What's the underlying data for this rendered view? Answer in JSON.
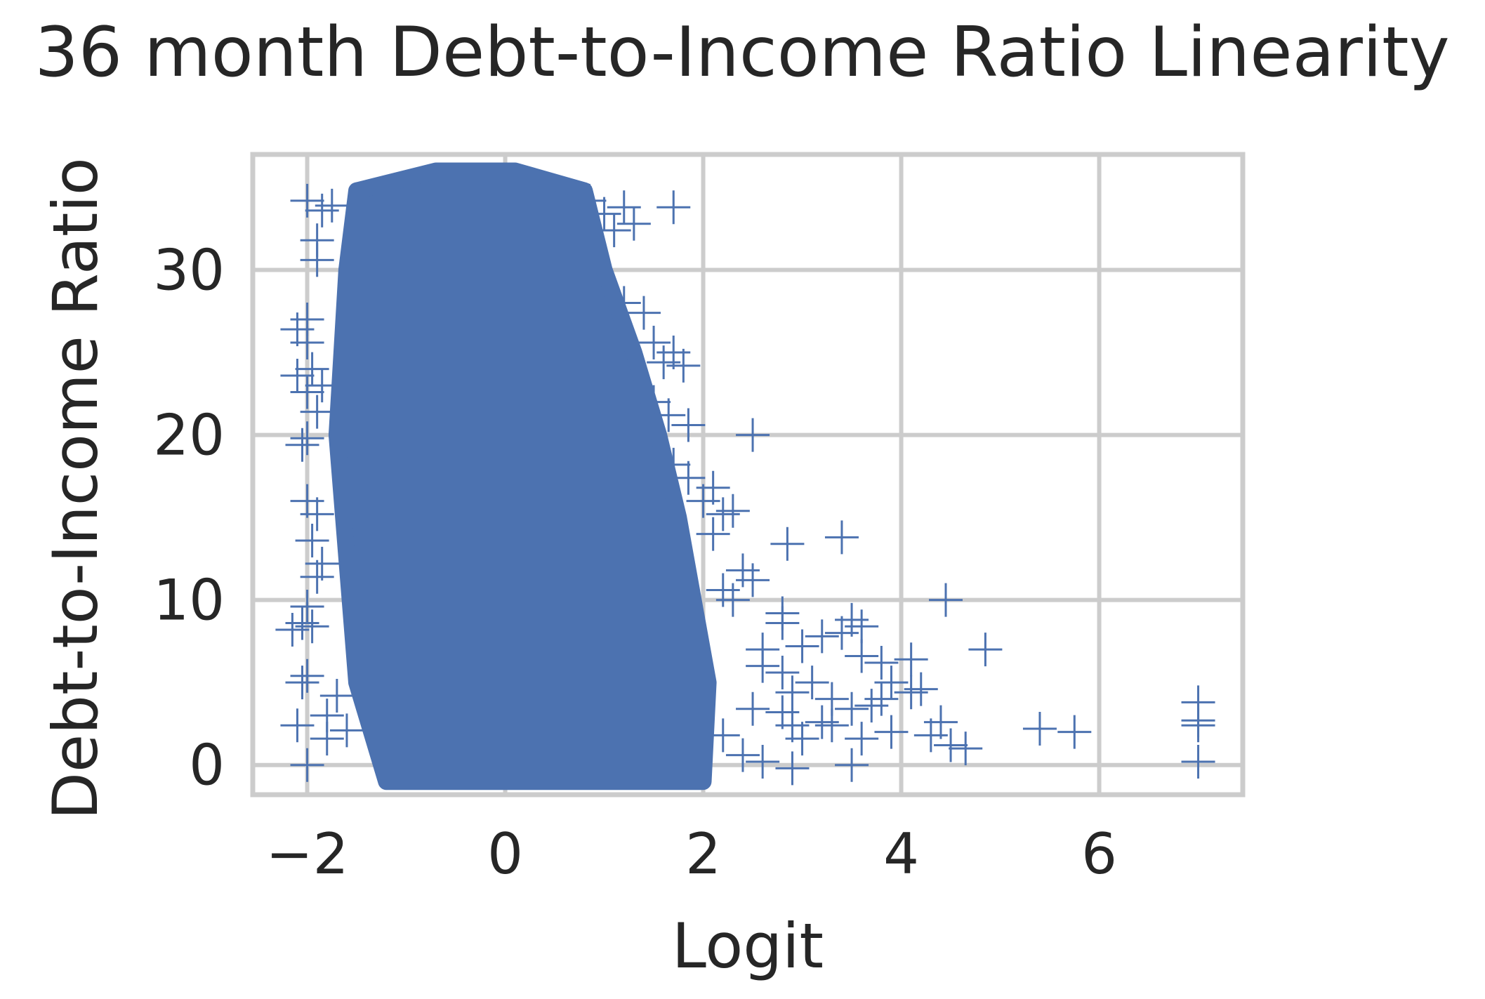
{
  "chart_data": {
    "type": "scatter",
    "title": "36 month Debt-to-Income Ratio Linearity",
    "xlabel": "Logit",
    "ylabel": "Debt-to-Income Ratio",
    "xlim": [
      -2.55,
      7.45
    ],
    "ylim": [
      -1.8,
      37.0
    ],
    "xticks": [
      -2,
      0,
      2,
      4,
      6
    ],
    "xtick_labels": [
      "−2",
      "0",
      "2",
      "4",
      "6"
    ],
    "yticks": [
      0,
      10,
      20,
      30
    ],
    "ytick_labels": [
      "0",
      "10",
      "20",
      "30"
    ],
    "grid": true,
    "marker": "+",
    "color": "#4c72b0",
    "dense_cloud": [
      [
        -1.5,
        34.8
      ],
      [
        -0.7,
        36.0
      ],
      [
        0.1,
        36.0
      ],
      [
        0.8,
        34.8
      ],
      [
        1.0,
        30.0
      ],
      [
        1.3,
        25.0
      ],
      [
        1.55,
        20.0
      ],
      [
        1.75,
        15.0
      ],
      [
        1.9,
        10.0
      ],
      [
        2.05,
        5.0
      ],
      [
        2.0,
        -1.0
      ],
      [
        -1.2,
        -1.0
      ],
      [
        -1.5,
        5.0
      ],
      [
        -1.7,
        20.0
      ],
      [
        -1.6,
        30.0
      ]
    ],
    "points": [
      [
        -2.0,
        34.2
      ],
      [
        -1.85,
        33.6
      ],
      [
        -1.75,
        33.9
      ],
      [
        -1.9,
        31.8
      ],
      [
        -1.9,
        30.6
      ],
      [
        -2.0,
        27.0
      ],
      [
        -2.1,
        26.4
      ],
      [
        -2.0,
        25.6
      ],
      [
        -1.95,
        24.0
      ],
      [
        -2.1,
        23.6
      ],
      [
        -2.0,
        22.6
      ],
      [
        -1.85,
        23.0
      ],
      [
        -1.9,
        21.4
      ],
      [
        -2.0,
        19.8
      ],
      [
        -2.05,
        19.4
      ],
      [
        -2.0,
        16.0
      ],
      [
        -1.9,
        15.2
      ],
      [
        -1.95,
        13.6
      ],
      [
        -1.85,
        12.2
      ],
      [
        -1.9,
        11.4
      ],
      [
        -2.0,
        9.6
      ],
      [
        -2.05,
        8.6
      ],
      [
        -2.15,
        8.2
      ],
      [
        -1.95,
        8.4
      ],
      [
        -2.0,
        5.4
      ],
      [
        -2.05,
        5.0
      ],
      [
        -2.1,
        2.4
      ],
      [
        -1.8,
        1.6
      ],
      [
        -1.6,
        2.1
      ],
      [
        -2.0,
        0.0
      ],
      [
        -1.7,
        4.2
      ],
      [
        -1.8,
        3.0
      ],
      [
        0.85,
        34.2
      ],
      [
        1.0,
        33.4
      ],
      [
        1.2,
        33.8
      ],
      [
        1.3,
        32.8
      ],
      [
        1.1,
        32.4
      ],
      [
        1.7,
        33.8
      ],
      [
        1.2,
        28.0
      ],
      [
        1.4,
        27.4
      ],
      [
        1.5,
        25.6
      ],
      [
        1.7,
        25.0
      ],
      [
        1.8,
        24.2
      ],
      [
        1.6,
        24.4
      ],
      [
        1.5,
        22.0
      ],
      [
        1.65,
        21.2
      ],
      [
        1.85,
        20.6
      ],
      [
        2.5,
        20.0
      ],
      [
        1.7,
        18.2
      ],
      [
        1.85,
        17.4
      ],
      [
        2.0,
        16.0
      ],
      [
        2.1,
        16.8
      ],
      [
        2.2,
        15.2
      ],
      [
        2.3,
        15.4
      ],
      [
        2.1,
        14.0
      ],
      [
        2.85,
        13.4
      ],
      [
        3.4,
        13.8
      ],
      [
        2.4,
        11.8
      ],
      [
        2.5,
        11.2
      ],
      [
        2.2,
        10.6
      ],
      [
        2.3,
        10.0
      ],
      [
        4.45,
        10.0
      ],
      [
        2.8,
        9.2
      ],
      [
        2.8,
        8.6
      ],
      [
        3.5,
        8.8
      ],
      [
        3.6,
        8.4
      ],
      [
        3.4,
        8.0
      ],
      [
        3.2,
        7.8
      ],
      [
        4.85,
        7.0
      ],
      [
        2.6,
        7.0
      ],
      [
        3.0,
        7.2
      ],
      [
        3.6,
        6.6
      ],
      [
        3.8,
        6.2
      ],
      [
        4.1,
        6.4
      ],
      [
        2.6,
        6.0
      ],
      [
        2.8,
        5.6
      ],
      [
        3.1,
        5.0
      ],
      [
        3.9,
        5.0
      ],
      [
        4.2,
        4.6
      ],
      [
        4.1,
        4.4
      ],
      [
        3.8,
        4.0
      ],
      [
        2.9,
        4.4
      ],
      [
        3.3,
        4.0
      ],
      [
        3.7,
        3.6
      ],
      [
        2.8,
        3.2
      ],
      [
        3.5,
        3.4
      ],
      [
        4.4,
        2.6
      ],
      [
        2.9,
        2.4
      ],
      [
        3.2,
        2.6
      ],
      [
        3.3,
        2.4
      ],
      [
        3.0,
        1.6
      ],
      [
        3.6,
        1.6
      ],
      [
        3.9,
        2.0
      ],
      [
        4.3,
        1.8
      ],
      [
        4.5,
        1.2
      ],
      [
        4.65,
        1.0
      ],
      [
        5.4,
        2.2
      ],
      [
        5.75,
        2.0
      ],
      [
        7.0,
        3.8
      ],
      [
        7.0,
        2.7
      ],
      [
        7.0,
        2.4
      ],
      [
        7.0,
        0.2
      ],
      [
        2.6,
        0.2
      ],
      [
        3.5,
        0.0
      ],
      [
        2.9,
        -0.2
      ],
      [
        2.4,
        0.6
      ],
      [
        2.2,
        1.8
      ],
      [
        2.5,
        3.4
      ]
    ]
  }
}
